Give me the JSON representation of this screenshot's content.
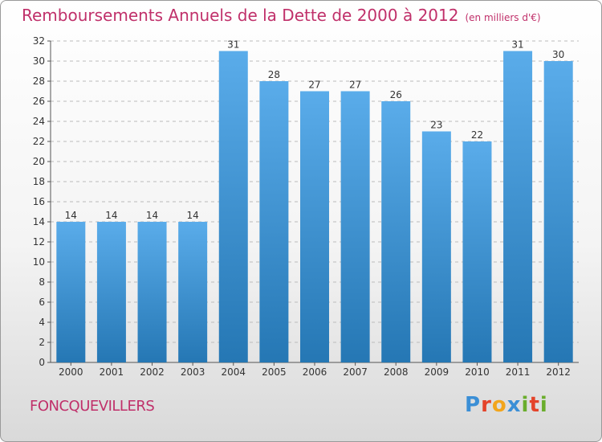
{
  "title": "Remboursements Annuels de la Dette de 2000 à 2012",
  "unit": "(en milliers d'€)",
  "commune": "FONCQUEVILLERS",
  "logo": {
    "letters": [
      {
        "ch": "P",
        "color": "#3b8fd6"
      },
      {
        "ch": "r",
        "color": "#e4432a"
      },
      {
        "ch": "o",
        "color": "#f2a51c"
      },
      {
        "ch": "x",
        "color": "#3b8fd6"
      },
      {
        "ch": "i",
        "color": "#6aad2c"
      },
      {
        "ch": "t",
        "color": "#e4432a"
      },
      {
        "ch": "i",
        "color": "#6aad2c"
      }
    ]
  },
  "colors": {
    "title": "#c0306a",
    "bar_top": "#5aacea",
    "bar_bottom": "#2577b4",
    "grid": "#bbbbbb"
  },
  "chart_data": {
    "type": "bar",
    "categories": [
      "2000",
      "2001",
      "2002",
      "2003",
      "2004",
      "2005",
      "2006",
      "2007",
      "2008",
      "2009",
      "2010",
      "2011",
      "2012"
    ],
    "values": [
      14,
      14,
      14,
      14,
      31,
      28,
      27,
      27,
      26,
      23,
      22,
      31,
      30
    ],
    "title": "Remboursements Annuels de la Dette de 2000 à 2012",
    "xlabel": "",
    "ylabel": "",
    "ylim": [
      0,
      32
    ],
    "yticks": [
      0,
      2,
      4,
      6,
      8,
      10,
      12,
      14,
      16,
      18,
      20,
      22,
      24,
      26,
      28,
      30,
      32
    ],
    "grid": true,
    "data_labels": true
  }
}
